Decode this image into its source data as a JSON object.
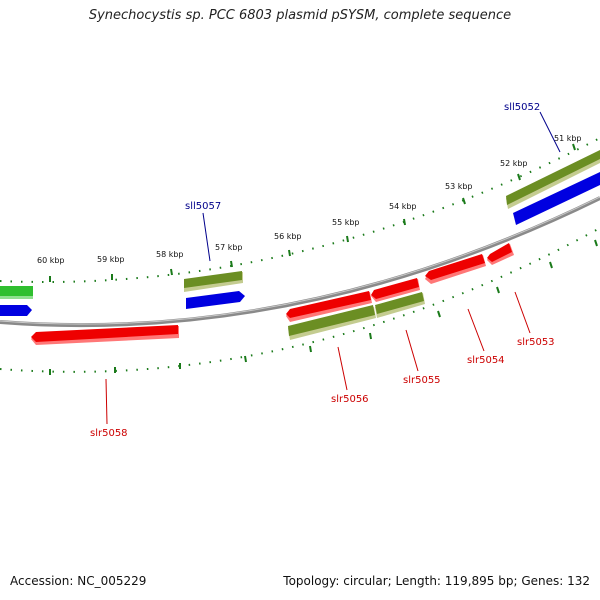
{
  "title": "Synechocystis sp. PCC 6803 plasmid pSYSM, complete sequence",
  "accession": "Accession: NC_005229",
  "summary": "Topology: circular; Length: 119,895 bp; Genes: 132",
  "colors": {
    "backbone": "#808080",
    "tick": "#1a7a1a",
    "green_strong": "#2fbf2f",
    "olive": "#6b8e23",
    "blue": "#0000e0",
    "red": "#ee0000",
    "label_blue": "#00008b",
    "label_red": "#cc0000"
  },
  "ticks": [
    {
      "label": "51 kbp"
    },
    {
      "label": "52 kbp"
    },
    {
      "label": "53 kbp"
    },
    {
      "label": "54 kbp"
    },
    {
      "label": "55 kbp"
    },
    {
      "label": "56 kbp"
    },
    {
      "label": "57 kbp"
    },
    {
      "label": "58 kbp"
    },
    {
      "label": "59 kbp"
    },
    {
      "label": "60 kbp"
    }
  ],
  "gene_labels": {
    "sll5052": "sll5052",
    "sll5057": "sll5057",
    "slr5053": "slr5053",
    "slr5054": "slr5054",
    "slr5055": "slr5055",
    "slr5056": "slr5056",
    "slr5058": "slr5058"
  }
}
